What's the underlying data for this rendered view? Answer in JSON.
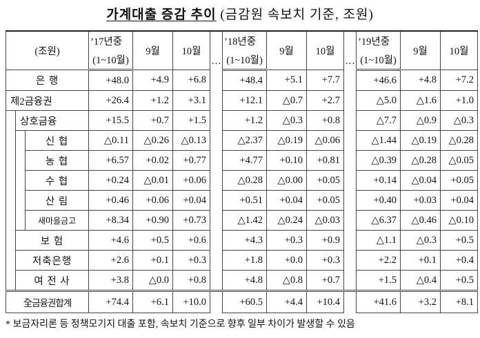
{
  "header": {
    "title": "가계대출 증감 추이",
    "subtitle": "(금감원 속보치 기준, 조원)"
  },
  "table": {
    "columns": {
      "unit": "(조원)",
      "ellipsis": "…",
      "periods": [
        {
          "year": "’17년중",
          "range": "(1~10월)",
          "months": [
            "9월",
            "10월"
          ]
        },
        {
          "year": "’18년중",
          "range": "(1~10월)",
          "months": [
            "9월",
            "10월"
          ]
        },
        {
          "year": "’19년중",
          "range": "(1~10월)",
          "months": [
            "9월",
            "10월"
          ]
        }
      ]
    },
    "banks": {
      "label": "은 행",
      "values": [
        "+48.0",
        "+4.9",
        "+6.8",
        "+48.4",
        "+5.1",
        "+7.7",
        "+46.6",
        "+4.8",
        "+7.2"
      ]
    },
    "second_tier": {
      "label": "제2금융권",
      "values": [
        "+26.4",
        "+1.2",
        "+3.1",
        "+12.1",
        "△0.7",
        "+2.7",
        "△5.0",
        "△1.6",
        "+1.0"
      ],
      "mutual": {
        "label": "상호금융",
        "values": [
          "+15.5",
          "+0.7",
          "+1.5",
          "+1.2",
          "△0.3",
          "+0.8",
          "△7.7",
          "△0.9",
          "△0.3"
        ],
        "members": [
          {
            "label": "신 협",
            "values": [
              "△0.11",
              "△0.26",
              "△0.13",
              "△2.37",
              "△0.19",
              "△0.06",
              "△1.44",
              "△0.19",
              "△0.28"
            ]
          },
          {
            "label": "농 협",
            "values": [
              "+6.57",
              "+0.02",
              "+0.77",
              "+4.77",
              "+0.10",
              "+0.81",
              "△0.39",
              "△0.28",
              "△0.05"
            ]
          },
          {
            "label": "수 협",
            "values": [
              "+0.24",
              "△0.01",
              "+0.06",
              "△0.28",
              "△0.00",
              "+0.05",
              "+0.14",
              "△0.04",
              "+0.05"
            ]
          },
          {
            "label": "산 림",
            "values": [
              "+0.46",
              "+0.06",
              "+0.04",
              "+0.51",
              "+0.04",
              "+0.05",
              "+0.40",
              "+0.03",
              "+0.04"
            ]
          },
          {
            "label": "새마을금고",
            "values": [
              "+8.34",
              "+0.90",
              "+0.73",
              "△1.42",
              "△0.24",
              "△0.03",
              "△6.37",
              "△0.46",
              "△0.10"
            ]
          }
        ]
      },
      "others": [
        {
          "label": "보 험",
          "values": [
            "+4.6",
            "+0.5",
            "+0.6",
            "+4.3",
            "+0.3",
            "+0.9",
            "△1.1",
            "△0.3",
            "+0.5"
          ]
        },
        {
          "label": "저축은행",
          "values": [
            "+2.6",
            "+0.1",
            "+0.3",
            "+1.8",
            "+0.0",
            "+0.3",
            "+2.2",
            "+0.1",
            "+0.4"
          ]
        },
        {
          "label": "여 전 사",
          "values": [
            "+3.8",
            "△0.0",
            "+0.8",
            "+4.8",
            "△0.8",
            "+0.7",
            "+1.5",
            "△0.4",
            "+0.5"
          ]
        }
      ]
    },
    "total": {
      "label": "全금융권합계",
      "values": [
        "+74.4",
        "+6.1",
        "+10.0",
        "+60.5",
        "+4.4",
        "+10.4",
        "+41.6",
        "+3.2",
        "+8.1"
      ]
    }
  },
  "footnote": "* 보금자리론 등 정책모기지 대출 포함, 속보치 기준으로 향후 일부 차이가 발생할 수 있음"
}
